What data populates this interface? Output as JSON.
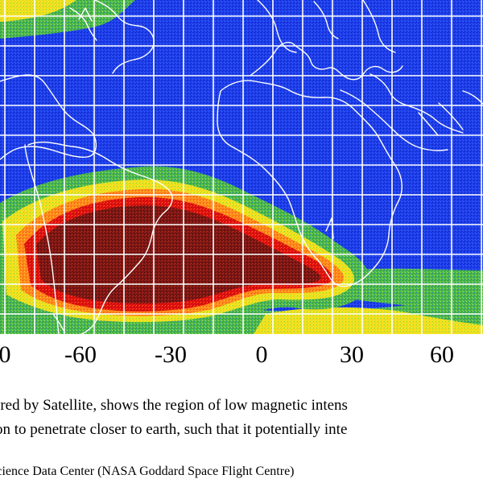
{
  "figure": {
    "type": "map",
    "description_visible": false,
    "colors": {
      "ocean_field": "#1a2fd0",
      "outer_green": "#58c45a",
      "yellow": "#f7e81d",
      "orange": "#ff9a1f",
      "red": "#d80e0e",
      "dark_red": "#8b1d18",
      "grid": "#ffffff",
      "coast": "#ffffff"
    },
    "longitude_ticks": [
      "0",
      "-60",
      "-30",
      "0",
      "30",
      "60"
    ]
  },
  "caption": {
    "line1": "asured by Satellite, shows the region of low magnetic intens",
    "line2": "ation to penetrate closer to earth, such that it potentially inte"
  },
  "source": {
    "text": "T Science Data Center (NASA Goddard Space Flight Centre)"
  }
}
